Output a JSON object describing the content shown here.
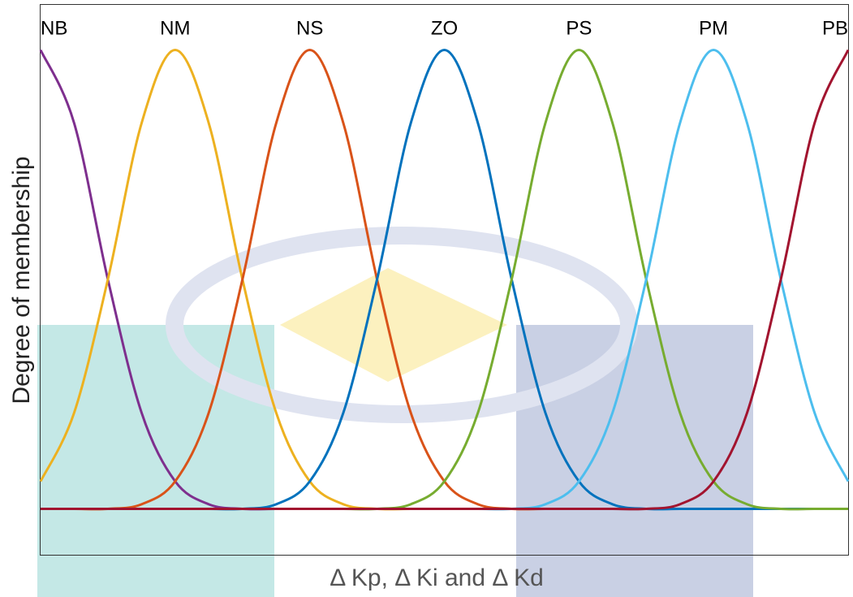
{
  "chart_data": {
    "type": "line",
    "xlabel": "Δ Kp, Δ Ki and Δ Kd",
    "ylabel": "Degree of membership",
    "x": [
      0,
      0.25,
      0.5,
      0.75,
      1,
      1.25,
      1.5,
      1.75,
      2,
      2.25,
      2.5,
      2.75,
      3,
      3.25,
      3.5,
      3.75,
      4,
      4.25,
      4.5,
      4.75,
      5,
      5.25,
      5.5,
      5.75,
      6
    ],
    "xlim": [
      0,
      6
    ],
    "ylim": [
      -0.1,
      1.1
    ],
    "series": [
      {
        "name": "NB",
        "color": "#7e2f8e",
        "values": [
          1,
          0.84,
          0.5,
          0.21,
          0.06,
          0.01,
          0,
          0,
          0,
          0,
          0,
          0,
          0,
          0,
          0,
          0,
          0,
          0,
          0,
          0,
          0,
          0,
          0,
          0,
          0
        ]
      },
      {
        "name": "NM",
        "color": "#edb120",
        "values": [
          0.06,
          0.21,
          0.5,
          0.84,
          1,
          0.84,
          0.5,
          0.21,
          0.06,
          0.01,
          0,
          0,
          0,
          0,
          0,
          0,
          0,
          0,
          0,
          0,
          0,
          0,
          0,
          0,
          0
        ]
      },
      {
        "name": "NS",
        "color": "#d95319",
        "values": [
          0,
          0,
          0,
          0.01,
          0.06,
          0.21,
          0.5,
          0.84,
          1,
          0.84,
          0.5,
          0.21,
          0.06,
          0.01,
          0,
          0,
          0,
          0,
          0,
          0,
          0,
          0,
          0,
          0,
          0
        ]
      },
      {
        "name": "ZO",
        "color": "#0072bd",
        "values": [
          0,
          0,
          0,
          0,
          0,
          0,
          0,
          0.01,
          0.06,
          0.21,
          0.5,
          0.84,
          1,
          0.84,
          0.5,
          0.21,
          0.06,
          0.01,
          0,
          0,
          0,
          0,
          0,
          0,
          0
        ]
      },
      {
        "name": "PS",
        "color": "#77ac30",
        "values": [
          0,
          0,
          0,
          0,
          0,
          0,
          0,
          0,
          0,
          0,
          0,
          0.01,
          0.06,
          0.21,
          0.5,
          0.84,
          1,
          0.84,
          0.5,
          0.21,
          0.06,
          0.01,
          0,
          0,
          0
        ]
      },
      {
        "name": "PM",
        "color": "#4dbeee",
        "values": [
          0,
          0,
          0,
          0,
          0,
          0,
          0,
          0,
          0,
          0,
          0,
          0,
          0,
          0,
          0,
          0.01,
          0.06,
          0.21,
          0.5,
          0.84,
          1,
          0.84,
          0.5,
          0.21,
          0.06
        ]
      },
      {
        "name": "PB",
        "color": "#a2142f",
        "values": [
          0,
          0,
          0,
          0,
          0,
          0,
          0,
          0,
          0,
          0,
          0,
          0,
          0,
          0,
          0,
          0,
          0,
          0,
          0,
          0.01,
          0.06,
          0.21,
          0.5,
          0.84,
          1
        ]
      }
    ]
  }
}
